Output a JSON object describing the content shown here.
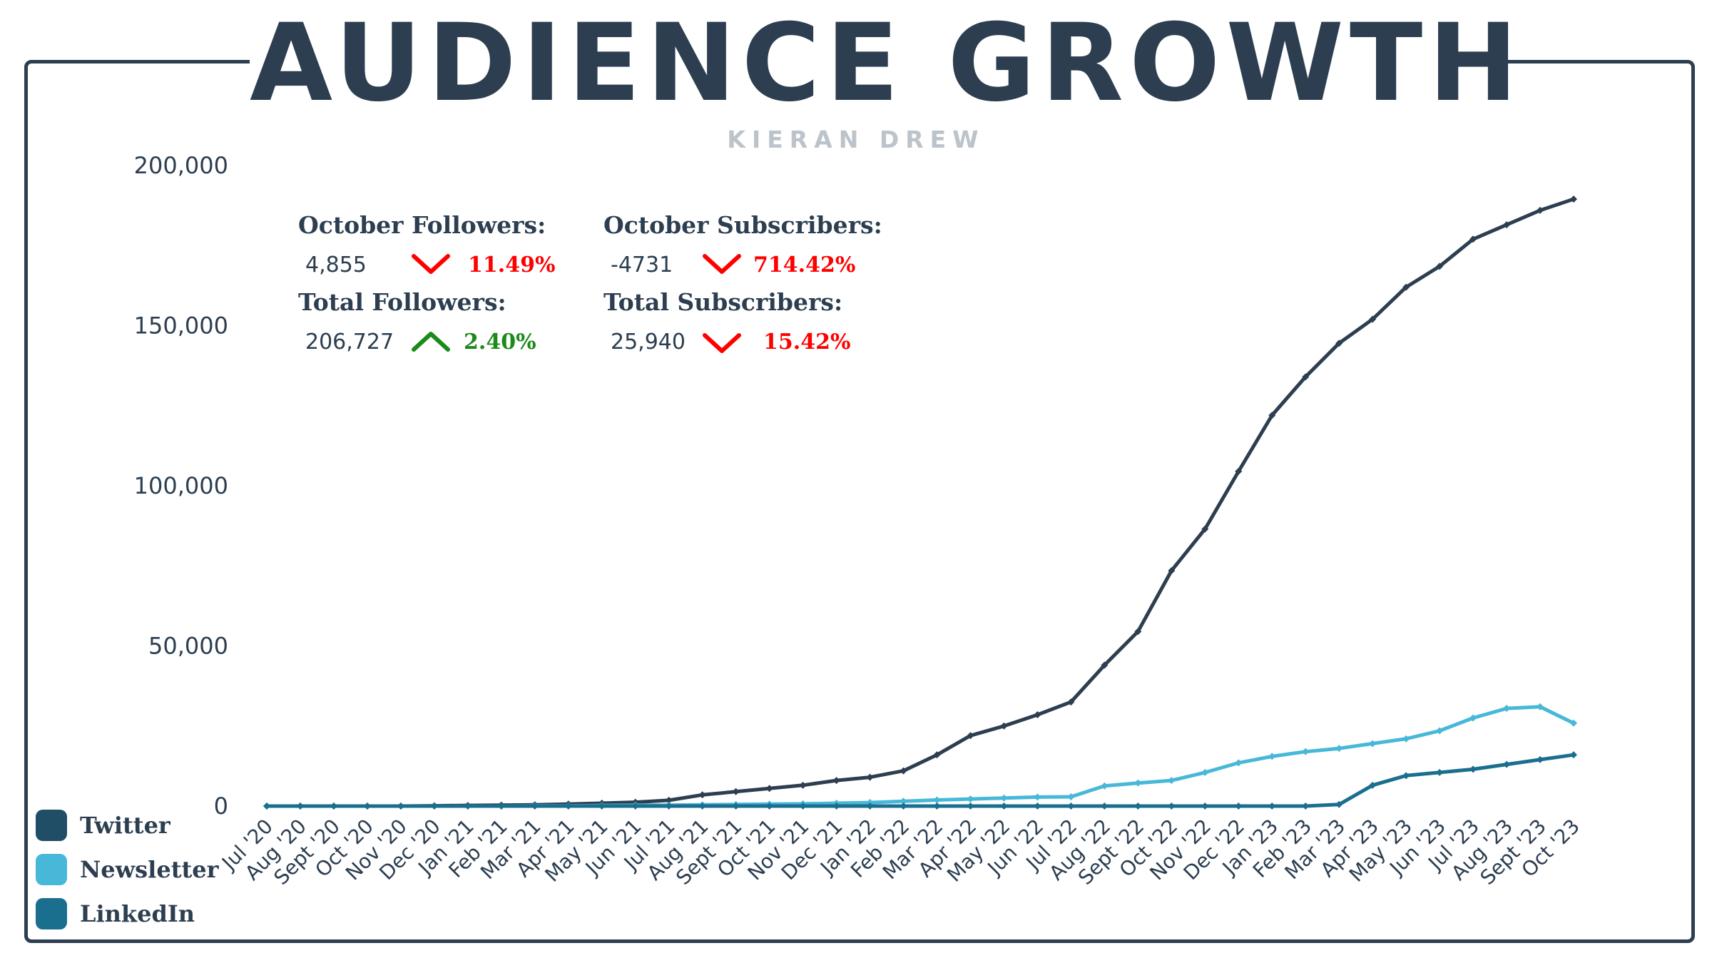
{
  "header": {
    "title": "AUDIENCE GROWTH",
    "subtitle": "KIERAN DREW"
  },
  "stats": {
    "october_followers": {
      "label": "October Followers:",
      "value": "4,855",
      "change": "11.49%",
      "direction": "down"
    },
    "total_followers": {
      "label": "Total Followers:",
      "value": "206,727",
      "change": "2.40%",
      "direction": "up"
    },
    "october_subscribers": {
      "label": "October Subscribers:",
      "value": "-4731",
      "change": "714.42%",
      "direction": "down"
    },
    "total_subscribers": {
      "label": "Total Subscribers:",
      "value": "25,940",
      "change": "15.42%",
      "direction": "down"
    }
  },
  "colors": {
    "twitter": "#2c3e50",
    "newsletter": "#48b8d8",
    "linkedin": "#1a6f8e",
    "down": "#ff0000",
    "up": "#1a8a1a"
  },
  "legend": [
    {
      "label": "Twitter",
      "color": "#1f4e66"
    },
    {
      "label": "Newsletter",
      "color": "#48b8d8"
    },
    {
      "label": "LinkedIn",
      "color": "#1a6f8e"
    }
  ],
  "chart_data": {
    "type": "line",
    "ylim": [
      0,
      200000
    ],
    "y_ticks": [
      "0",
      "50,000",
      "100,000",
      "150,000",
      "200,000"
    ],
    "y_tick_values": [
      0,
      50000,
      100000,
      150000,
      200000
    ],
    "grid": false,
    "legend_position": "bottom-left",
    "categories": [
      "Jul '20",
      "Aug '20",
      "Sept '20",
      "Oct '20",
      "Nov '20",
      "Dec '20",
      "Jan '21",
      "Feb '21",
      "Mar '21",
      "Apr '21",
      "May '21",
      "Jun '21",
      "Jul '21",
      "Aug '21",
      "Sept '21",
      "Oct '21",
      "Nov '21",
      "Dec '21",
      "Jan '22",
      "Feb '22",
      "Mar '22",
      "Apr '22",
      "May '22",
      "Jun '22",
      "Jul '22",
      "Aug '22",
      "Sept '22",
      "Oct '22",
      "Nov '22",
      "Dec '22",
      "Jan '23",
      "Feb '23",
      "Mar '23",
      "Apr '23",
      "May '23",
      "Jun '23",
      "Jul '23",
      "Aug '23",
      "Sept '23",
      "Oct '23"
    ],
    "series": [
      {
        "name": "Twitter",
        "color": "#2c3e50",
        "values": [
          0,
          0,
          0,
          0,
          0,
          100,
          200,
          300,
          400,
          600,
          900,
          1200,
          1800,
          3500,
          4500,
          5500,
          6500,
          8000,
          9000,
          11000,
          16000,
          22000,
          25000,
          28500,
          32500,
          44000,
          54500,
          73500,
          86500,
          104500,
          122000,
          134000,
          144500,
          152000,
          162000,
          168500,
          177000,
          181500,
          186000,
          189500
        ]
      },
      {
        "name": "Newsletter",
        "color": "#48b8d8",
        "values": [
          0,
          0,
          0,
          0,
          0,
          0,
          0,
          0,
          100,
          100,
          200,
          300,
          300,
          400,
          500,
          600,
          700,
          900,
          1100,
          1500,
          1900,
          2200,
          2500,
          2800,
          2900,
          6300,
          7200,
          8000,
          10500,
          13500,
          15500,
          17000,
          18000,
          19500,
          21000,
          23500,
          27500,
          30500,
          31000,
          25900
        ]
      },
      {
        "name": "LinkedIn",
        "color": "#1a6f8e",
        "values": [
          0,
          0,
          0,
          0,
          0,
          0,
          0,
          0,
          0,
          0,
          0,
          0,
          0,
          0,
          0,
          0,
          0,
          0,
          0,
          0,
          0,
          0,
          0,
          0,
          0,
          0,
          0,
          0,
          0,
          0,
          0,
          0,
          500,
          6500,
          9500,
          10500,
          11500,
          13000,
          14500,
          16000
        ]
      }
    ]
  }
}
